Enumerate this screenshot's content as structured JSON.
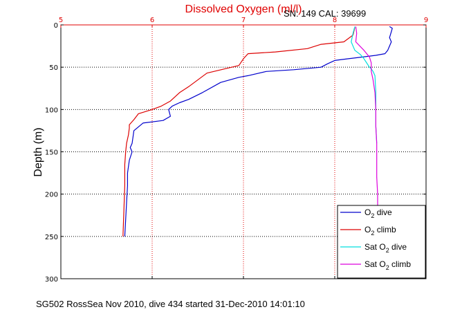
{
  "colors": {
    "o2_dive": "#0000cc",
    "o2_climb": "#dd0000",
    "sat_dive": "#00dddd",
    "sat_climb": "#dd00dd",
    "top_axis": "#e00000",
    "grid_red": "#e00000",
    "grid_black": "#000000"
  },
  "chart_data": {
    "type": "line",
    "title": "Dissolved Oxygen (ml/l)",
    "subtitle": "SN: 149  CAL: 39699",
    "ylabel": "Depth (m)",
    "xlabel": "",
    "footer": "SG502 RossSea Nov 2010, dive 434 started 31-Dec-2010 14:01:10",
    "xlim": [
      5,
      9
    ],
    "ylim": [
      0,
      300
    ],
    "y_reversed": true,
    "x_axis_position": "top",
    "x_ticks": [
      "5",
      "6",
      "7",
      "8",
      "9"
    ],
    "y_ticks": [
      "0",
      "50",
      "100",
      "150",
      "200",
      "250",
      "300"
    ],
    "grid": true,
    "legend_position": "bottom-right",
    "legend": [
      {
        "label": "O",
        "sub": "2",
        "suffix": " dive"
      },
      {
        "label": "O",
        "sub": "2",
        "suffix": " climb"
      },
      {
        "label": "Sat O",
        "sub": "2",
        "suffix": " dive"
      },
      {
        "label": "Sat O",
        "sub": "2",
        "suffix": " climb"
      }
    ],
    "series": [
      {
        "name": "O2 dive",
        "points": [
          [
            8.6,
            2
          ],
          [
            8.63,
            4
          ],
          [
            8.62,
            8
          ],
          [
            8.6,
            15
          ],
          [
            8.62,
            20
          ],
          [
            8.6,
            25
          ],
          [
            8.58,
            30
          ],
          [
            8.55,
            34
          ],
          [
            8.45,
            36
          ],
          [
            8.3,
            38
          ],
          [
            8.15,
            40
          ],
          [
            8.0,
            42
          ],
          [
            7.92,
            46
          ],
          [
            7.85,
            50
          ],
          [
            7.55,
            53
          ],
          [
            7.25,
            55
          ],
          [
            7.05,
            60
          ],
          [
            6.95,
            62
          ],
          [
            6.75,
            68
          ],
          [
            6.55,
            80
          ],
          [
            6.4,
            88
          ],
          [
            6.3,
            92
          ],
          [
            6.22,
            96
          ],
          [
            6.18,
            100
          ],
          [
            6.2,
            108
          ],
          [
            6.12,
            113
          ],
          [
            5.9,
            116
          ],
          [
            5.8,
            125
          ],
          [
            5.78,
            140
          ],
          [
            5.76,
            145
          ],
          [
            5.78,
            150
          ],
          [
            5.75,
            160
          ],
          [
            5.73,
            175
          ],
          [
            5.73,
            190
          ],
          [
            5.72,
            210
          ],
          [
            5.71,
            230
          ],
          [
            5.7,
            250
          ]
        ]
      },
      {
        "name": "O2 climb",
        "points": [
          [
            8.22,
            3
          ],
          [
            8.2,
            12
          ],
          [
            8.1,
            20
          ],
          [
            7.85,
            23
          ],
          [
            7.7,
            28
          ],
          [
            7.35,
            32
          ],
          [
            7.05,
            34
          ],
          [
            7.0,
            40
          ],
          [
            6.95,
            48
          ],
          [
            6.6,
            57
          ],
          [
            6.4,
            73
          ],
          [
            6.3,
            80
          ],
          [
            6.2,
            90
          ],
          [
            6.1,
            96
          ],
          [
            6.0,
            100
          ],
          [
            5.85,
            105
          ],
          [
            5.8,
            112
          ],
          [
            5.75,
            118
          ],
          [
            5.75,
            122
          ],
          [
            5.74,
            130
          ],
          [
            5.72,
            140
          ],
          [
            5.71,
            150
          ],
          [
            5.7,
            165
          ],
          [
            5.7,
            190
          ],
          [
            5.69,
            220
          ],
          [
            5.68,
            250
          ]
        ]
      },
      {
        "name": "Sat O2 dive",
        "points": [
          [
            8.22,
            2
          ],
          [
            8.2,
            10
          ],
          [
            8.18,
            20
          ],
          [
            8.22,
            30
          ],
          [
            8.28,
            35
          ],
          [
            8.32,
            40
          ],
          [
            8.35,
            45
          ],
          [
            8.38,
            50
          ],
          [
            8.4,
            52
          ],
          [
            8.42,
            55
          ],
          [
            8.44,
            60
          ],
          [
            8.45,
            80
          ],
          [
            8.45,
            100
          ],
          [
            8.45,
            120
          ],
          [
            8.46,
            140
          ]
        ]
      },
      {
        "name": "Sat O2 climb",
        "points": [
          [
            8.23,
            2
          ],
          [
            8.24,
            10
          ],
          [
            8.23,
            20
          ],
          [
            8.32,
            30
          ],
          [
            8.38,
            38
          ],
          [
            8.4,
            45
          ],
          [
            8.4,
            55
          ],
          [
            8.42,
            65
          ],
          [
            8.44,
            80
          ],
          [
            8.45,
            100
          ],
          [
            8.45,
            120
          ],
          [
            8.46,
            140
          ],
          [
            8.46,
            160
          ],
          [
            8.46,
            180
          ],
          [
            8.47,
            200
          ],
          [
            8.47,
            215
          ]
        ]
      }
    ]
  }
}
